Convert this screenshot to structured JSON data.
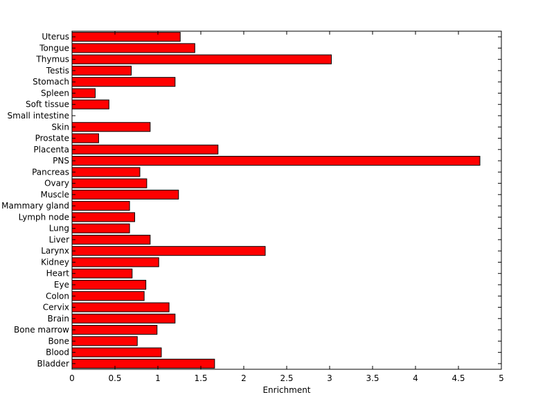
{
  "chart_data": {
    "type": "bar",
    "orientation": "horizontal",
    "title": "",
    "xlabel": "Enrichment",
    "ylabel": "",
    "xlim": [
      0,
      5
    ],
    "xticks": [
      "0",
      "0.5",
      "1",
      "1.5",
      "2",
      "2.5",
      "3",
      "3.5",
      "4",
      "4.5",
      "5"
    ],
    "grid": false,
    "bar_color": "#ff0000",
    "categories": [
      "Bladder",
      "Blood",
      "Bone",
      "Bone marrow",
      "Brain",
      "Cervix",
      "Colon",
      "Eye",
      "Heart",
      "Kidney",
      "Larynx",
      "Liver",
      "Lung",
      "Lymph node",
      "Mammary gland",
      "Muscle",
      "Ovary",
      "Pancreas",
      "PNS",
      "Placenta",
      "Prostate",
      "Skin",
      "Small intestine",
      "Soft tissue",
      "Spleen",
      "Stomach",
      "Testis",
      "Thymus",
      "Tongue",
      "Uterus"
    ],
    "values": [
      1.66,
      1.04,
      0.76,
      0.99,
      1.2,
      1.13,
      0.84,
      0.86,
      0.7,
      1.01,
      2.25,
      0.91,
      0.67,
      0.73,
      0.67,
      1.24,
      0.87,
      0.79,
      4.75,
      1.7,
      0.31,
      0.91,
      0.0,
      0.43,
      0.27,
      1.2,
      0.69,
      3.02,
      1.43,
      1.26
    ]
  }
}
